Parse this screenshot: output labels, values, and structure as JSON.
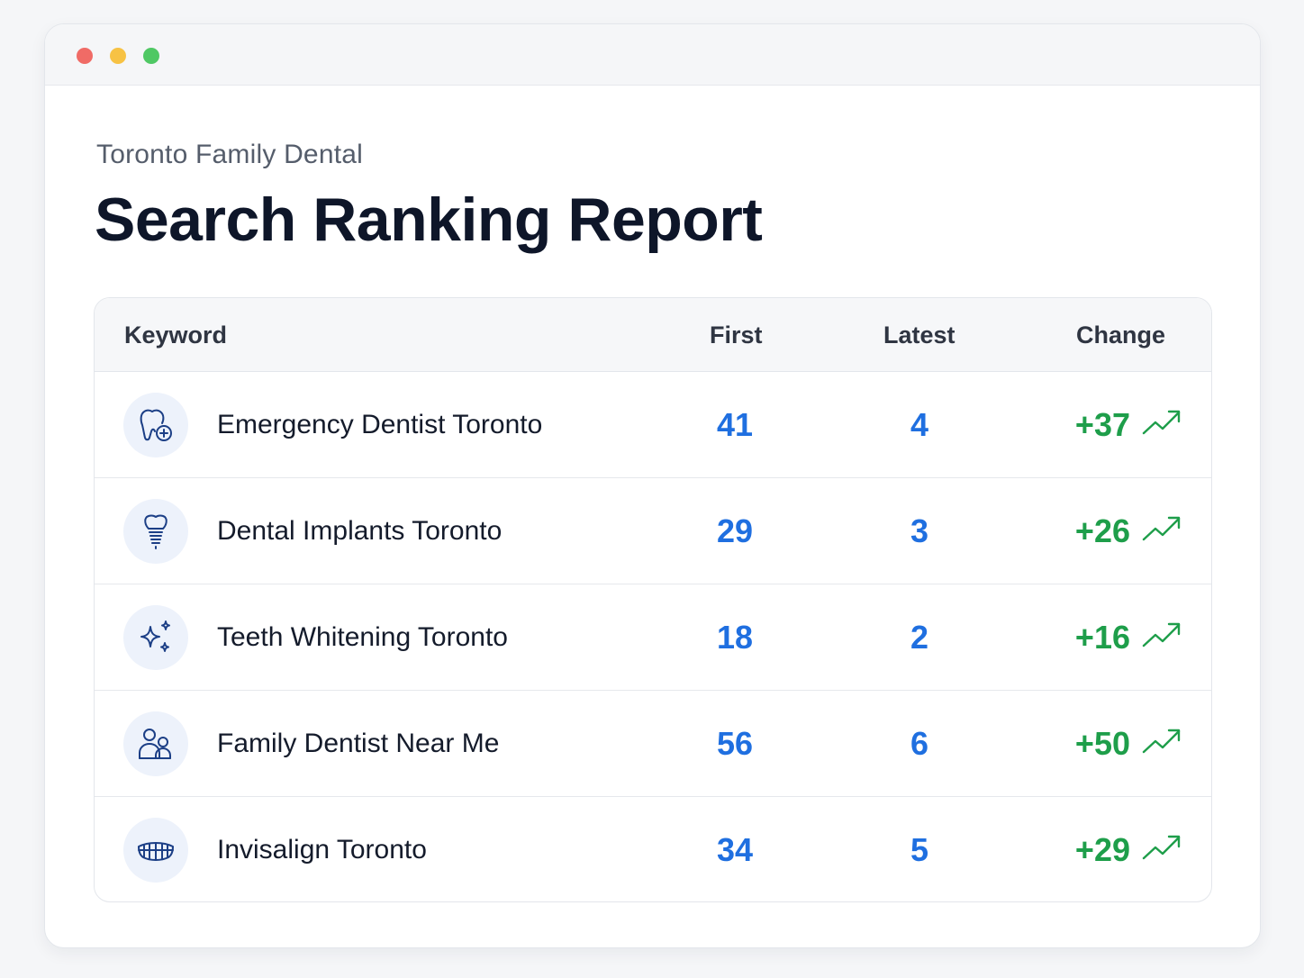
{
  "window": {
    "controls": [
      "close",
      "minimize",
      "maximize"
    ]
  },
  "header": {
    "subtitle": "Toronto Family Dental",
    "title": "Search Ranking Report"
  },
  "table": {
    "columns": {
      "keyword": "Keyword",
      "first": "First",
      "latest": "Latest",
      "change": "Change"
    },
    "rows": [
      {
        "icon": "tooth-plus-icon",
        "keyword": "Emergency Dentist Toronto",
        "first": "41",
        "latest": "4",
        "change": "+37"
      },
      {
        "icon": "dental-implant-icon",
        "keyword": "Dental Implants Toronto",
        "first": "29",
        "latest": "3",
        "change": "+26"
      },
      {
        "icon": "sparkles-icon",
        "keyword": "Teeth Whitening Toronto",
        "first": "18",
        "latest": "2",
        "change": "+16"
      },
      {
        "icon": "family-icon",
        "keyword": "Family Dentist Near Me",
        "first": "56",
        "latest": "6",
        "change": "+50"
      },
      {
        "icon": "teeth-aligner-icon",
        "keyword": "Invisalign Toronto",
        "first": "34",
        "latest": "5",
        "change": "+29"
      }
    ]
  },
  "colors": {
    "accent_blue": "#1f6fe0",
    "positive_green": "#1e9e4a",
    "title_dark": "#0e1629",
    "icon_bg": "#edf2fb"
  }
}
